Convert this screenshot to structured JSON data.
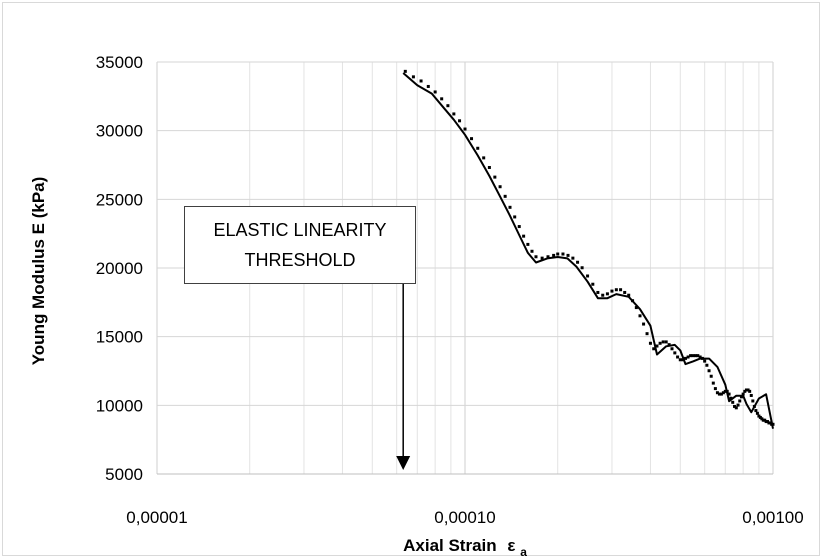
{
  "chart_data": {
    "type": "scatter",
    "xscale": "log",
    "xlabel": "Axial Strain",
    "xlabel_sub": "a",
    "xlabel_symbol": "ε",
    "ylabel": "Young Modulus  E (kPa)",
    "xlim": [
      1e-05,
      0.001
    ],
    "ylim": [
      5000,
      35000
    ],
    "x_tick_labels": [
      "0,00001",
      "0,00010",
      "0,00100"
    ],
    "y_tick_labels": [
      "5000",
      "10000",
      "15000",
      "20000",
      "25000",
      "30000",
      "35000"
    ],
    "grid": true,
    "annotation": {
      "line1": "ELASTIC LINEARITY",
      "line2": "THRESHOLD",
      "arrow_x": 6.3e-05
    },
    "series": [
      {
        "style": "line",
        "x": [
          6.3e-05,
          7e-05,
          7.8e-05,
          8.5e-05,
          9.2e-05,
          0.0001,
          0.00011,
          0.00012,
          0.00013,
          0.00014,
          0.00015,
          0.00016,
          0.00017,
          0.000185,
          0.0002,
          0.000215,
          0.00023,
          0.00025,
          0.00027,
          0.00029,
          0.00031,
          0.00034,
          0.00037,
          0.0004,
          0.00042,
          0.00045,
          0.00048,
          0.0005,
          0.00052,
          0.00055,
          0.00058,
          0.00062,
          0.00066,
          0.0007,
          0.00072,
          0.00076,
          0.0008,
          0.00082,
          0.00085,
          0.0009,
          0.00095,
          0.001
        ],
        "y": [
          34200,
          33300,
          32700,
          31700,
          30800,
          29700,
          28200,
          26700,
          25200,
          23800,
          22400,
          21100,
          20400,
          20700,
          20800,
          20700,
          20100,
          19000,
          17800,
          17800,
          18100,
          17900,
          17000,
          15800,
          13700,
          14300,
          14400,
          14000,
          13000,
          13200,
          13400,
          13400,
          12800,
          11500,
          10300,
          10700,
          10700,
          10100,
          9500,
          10500,
          10800,
          8300
        ]
      },
      {
        "style": "dots",
        "x": [
          6.4e-05,
          6.8e-05,
          7.2e-05,
          7.6e-05,
          8e-05,
          8.4e-05,
          8.8e-05,
          9.2e-05,
          9.6e-05,
          0.0001,
          0.000105,
          0.00011,
          0.000115,
          0.00012,
          0.000125,
          0.00013,
          0.000135,
          0.00014,
          0.000145,
          0.00015,
          0.000155,
          0.00016,
          0.000165,
          0.00017,
          0.000178,
          0.000186,
          0.000194,
          0.0002,
          0.000208,
          0.000216,
          0.000224,
          0.000232,
          0.00024,
          0.00025,
          0.00026,
          0.00027,
          0.00028,
          0.00029,
          0.0003,
          0.00031,
          0.00032,
          0.00033,
          0.00034,
          0.00035,
          0.00036,
          0.00037,
          0.00038,
          0.00039,
          0.0004,
          0.00041,
          0.00042,
          0.00043,
          0.00044,
          0.00045,
          0.00046,
          0.00047,
          0.00048,
          0.00049,
          0.0005,
          0.00051,
          0.00052,
          0.00053,
          0.00054,
          0.00055,
          0.00056,
          0.00057,
          0.00058,
          0.00059,
          0.0006,
          0.00061,
          0.00062,
          0.00063,
          0.00064,
          0.00065,
          0.00066,
          0.00067,
          0.00068,
          0.00069,
          0.0007,
          0.00071,
          0.00072,
          0.00073,
          0.00074,
          0.00075,
          0.00076,
          0.00077,
          0.00078,
          0.00079,
          0.0008,
          0.00081,
          0.00082,
          0.00083,
          0.00084,
          0.00085,
          0.00086,
          0.00087,
          0.00088,
          0.00089,
          0.0009,
          0.00091,
          0.00092,
          0.00093,
          0.00094,
          0.00095,
          0.00096,
          0.00097,
          0.00098,
          0.00099,
          0.001
        ],
        "y": [
          34100,
          33700,
          33400,
          33000,
          32600,
          32100,
          31600,
          31000,
          30500,
          29900,
          29200,
          28500,
          27800,
          27100,
          26400,
          25700,
          25000,
          24200,
          23500,
          22800,
          22100,
          21500,
          21000,
          20600,
          20500,
          20600,
          20700,
          20800,
          20800,
          20700,
          20500,
          20200,
          19800,
          19200,
          18600,
          18000,
          17800,
          17900,
          18100,
          18200,
          18200,
          18000,
          17800,
          17400,
          16900,
          16300,
          15700,
          15000,
          14300,
          13900,
          14100,
          14300,
          14400,
          14400,
          14200,
          13900,
          13600,
          13300,
          13100,
          13100,
          13200,
          13300,
          13400,
          13400,
          13400,
          13400,
          13300,
          13200,
          13000,
          12700,
          12300,
          11900,
          11400,
          11000,
          10700,
          10600,
          10600,
          10700,
          10800,
          10800,
          10600,
          10300,
          10000,
          9700,
          9600,
          9800,
          10100,
          10400,
          10600,
          10800,
          10900,
          10900,
          10800,
          10500,
          10100,
          9700,
          9400,
          9200,
          9000,
          8900,
          8800,
          8700,
          8700,
          8600,
          8600,
          8500,
          8500,
          8400,
          8400
        ]
      }
    ]
  }
}
